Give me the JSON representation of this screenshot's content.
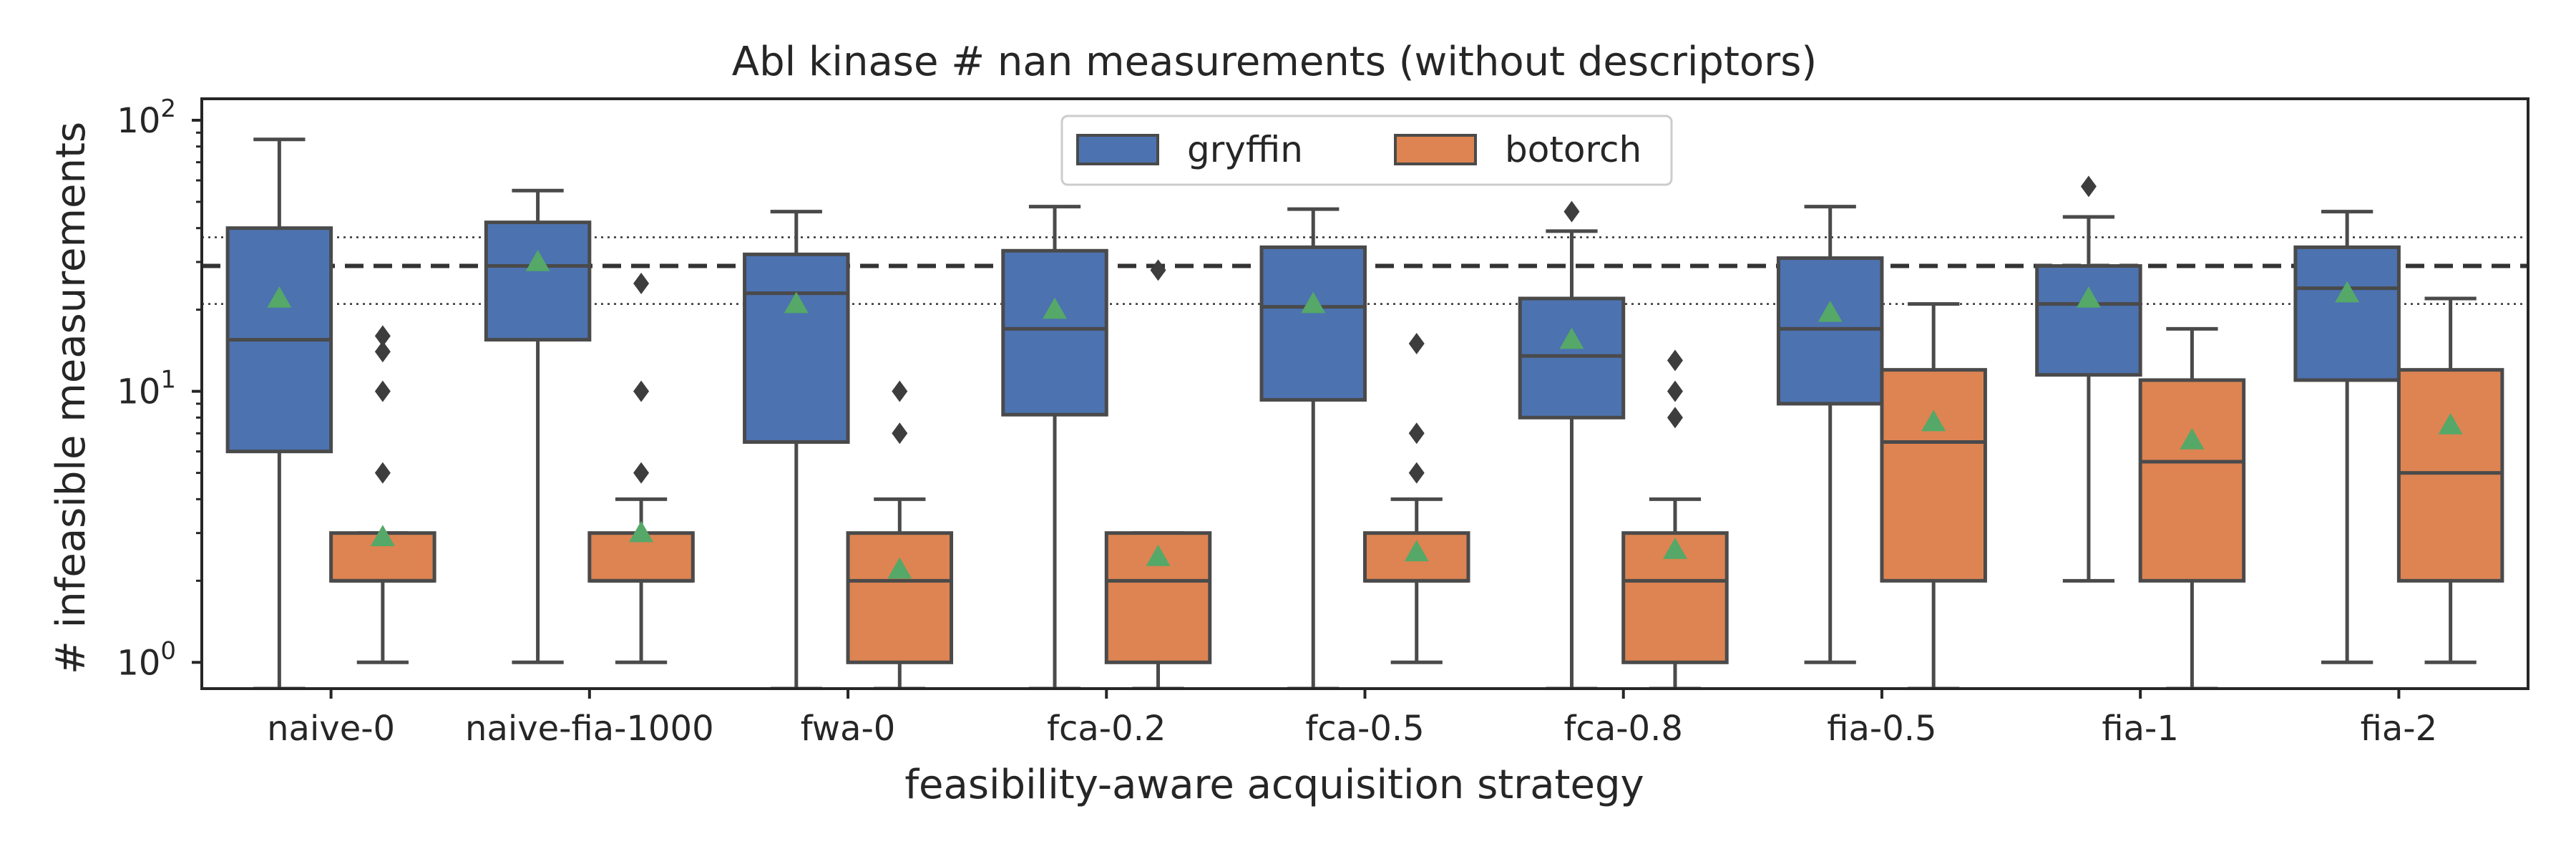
{
  "chart_data": {
    "type": "boxplot",
    "title": "Abl kinase # nan measurements (without descriptors)",
    "xlabel": "feasibility-aware acquisition strategy",
    "ylabel": "# infeasible measurements",
    "yscale": "log",
    "ylim": [
      0.8,
      120
    ],
    "yticks": [
      {
        "value": 1,
        "base": "10",
        "exp": "0"
      },
      {
        "value": 10,
        "base": "10",
        "exp": "1"
      },
      {
        "value": 100,
        "base": "10",
        "exp": "2"
      }
    ],
    "categories": [
      "naive-0",
      "naive-fia-1000",
      "fwa-0",
      "fca-0.2",
      "fca-0.5",
      "fca-0.8",
      "fia-0.5",
      "fia-1",
      "fia-2"
    ],
    "reference_lines": {
      "dashed": 29,
      "dotted": [
        21,
        37
      ]
    },
    "legend": {
      "placement": "upper center",
      "columns": 2
    },
    "colors": {
      "gryffin": "#4c72b0",
      "botorch": "#dd8452",
      "mean_marker": "#55a868",
      "box_edge": "#4a4a4a"
    },
    "series": [
      {
        "name": "gryffin",
        "boxes": [
          {
            "whislo": 0.8,
            "q1": 6.0,
            "med": 15.5,
            "q3": 40.0,
            "whishi": 85.0,
            "mean": 22.0,
            "fliers": []
          },
          {
            "whislo": 1.0,
            "q1": 15.5,
            "med": 29.0,
            "q3": 42.0,
            "whishi": 55.0,
            "mean": 30.0,
            "fliers": []
          },
          {
            "whislo": 0.8,
            "q1": 6.5,
            "med": 23.0,
            "q3": 32.0,
            "whishi": 46.0,
            "mean": 21.0,
            "fliers": []
          },
          {
            "whislo": 0.8,
            "q1": 8.2,
            "med": 17.0,
            "q3": 33.0,
            "whishi": 48.0,
            "mean": 20.0,
            "fliers": []
          },
          {
            "whislo": 0.8,
            "q1": 9.3,
            "med": 20.5,
            "q3": 34.0,
            "whishi": 47.0,
            "mean": 21.0,
            "fliers": []
          },
          {
            "whislo": 0.8,
            "q1": 8.0,
            "med": 13.5,
            "q3": 22.0,
            "whishi": 39.0,
            "mean": 15.5,
            "fliers": [
              46
            ]
          },
          {
            "whislo": 1.0,
            "q1": 9.0,
            "med": 17.0,
            "q3": 31.0,
            "whishi": 48.0,
            "mean": 19.5,
            "fliers": []
          },
          {
            "whislo": 2.0,
            "q1": 11.5,
            "med": 21.0,
            "q3": 29.0,
            "whishi": 44.0,
            "mean": 22.0,
            "fliers": [
              57
            ]
          },
          {
            "whislo": 1.0,
            "q1": 11.0,
            "med": 24.0,
            "q3": 34.0,
            "whishi": 46.0,
            "mean": 23.0,
            "fliers": []
          }
        ]
      },
      {
        "name": "botorch",
        "boxes": [
          {
            "whislo": 1.0,
            "q1": 2.0,
            "med": 2.0,
            "q3": 3.0,
            "whishi": 3.0,
            "mean": 2.9,
            "fliers": [
              5,
              10,
              14,
              16
            ]
          },
          {
            "whislo": 1.0,
            "q1": 2.0,
            "med": 2.0,
            "q3": 3.0,
            "whishi": 4.0,
            "mean": 3.0,
            "fliers": [
              5,
              10,
              25
            ]
          },
          {
            "whislo": 0.8,
            "q1": 1.0,
            "med": 2.0,
            "q3": 3.0,
            "whishi": 4.0,
            "mean": 2.2,
            "fliers": [
              7,
              10
            ]
          },
          {
            "whislo": 0.8,
            "q1": 1.0,
            "med": 2.0,
            "q3": 3.0,
            "whishi": 3.0,
            "mean": 2.45,
            "fliers": [
              28
            ]
          },
          {
            "whislo": 1.0,
            "q1": 2.0,
            "med": 2.0,
            "q3": 3.0,
            "whishi": 4.0,
            "mean": 2.55,
            "fliers": [
              5,
              7,
              15
            ]
          },
          {
            "whislo": 0.8,
            "q1": 1.0,
            "med": 2.0,
            "q3": 3.0,
            "whishi": 4.0,
            "mean": 2.6,
            "fliers": [
              8,
              10,
              13
            ]
          },
          {
            "whislo": 0.8,
            "q1": 2.0,
            "med": 6.5,
            "q3": 12.0,
            "whishi": 21.0,
            "mean": 7.7,
            "fliers": []
          },
          {
            "whislo": 0.8,
            "q1": 2.0,
            "med": 5.5,
            "q3": 11.0,
            "whishi": 17.0,
            "mean": 6.6,
            "fliers": []
          },
          {
            "whislo": 1.0,
            "q1": 2.0,
            "med": 5.0,
            "q3": 12.0,
            "whishi": 22.0,
            "mean": 7.5,
            "fliers": []
          }
        ]
      }
    ]
  }
}
